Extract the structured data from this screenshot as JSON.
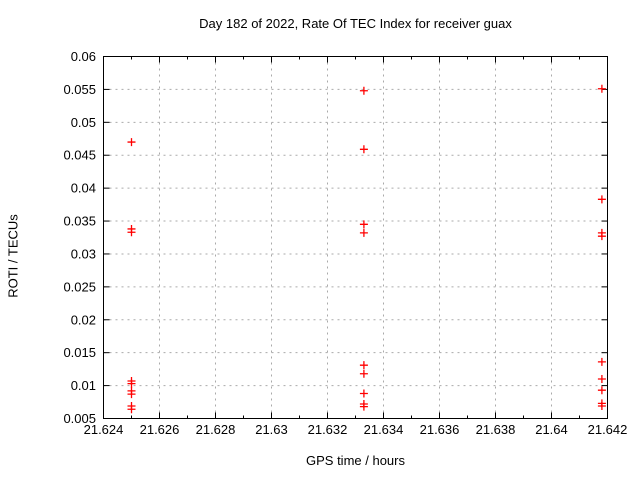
{
  "chart_data": {
    "type": "scatter",
    "title": "Day 182 of 2022, Rate Of TEC Index for receiver guax",
    "xlabel": "GPS time / hours",
    "ylabel": "ROTI / TECUs",
    "xlim": [
      21.624,
      21.642
    ],
    "ylim": [
      0.005,
      0.06
    ],
    "grid": true,
    "grid_color": "#aaaaaa",
    "axis_color": "#000000",
    "background_color": "#ffffff",
    "legend": null,
    "x_ticks": {
      "values": [
        21.624,
        21.626,
        21.628,
        21.63,
        21.632,
        21.634,
        21.636,
        21.638,
        21.64,
        21.642
      ],
      "labels": [
        "21.624",
        "21.626",
        "21.628",
        "21.63",
        "21.632",
        "21.634",
        "21.636",
        "21.638",
        "21.64",
        "21.642"
      ],
      "minor_step": 0.001
    },
    "y_ticks": {
      "values": [
        0.005,
        0.01,
        0.015,
        0.02,
        0.025,
        0.03,
        0.035,
        0.04,
        0.045,
        0.05,
        0.055,
        0.06
      ],
      "labels": [
        "0.005",
        "0.01",
        "0.015",
        "0.02",
        "0.025",
        "0.03",
        "0.035",
        "0.04",
        "0.045",
        "0.05",
        "0.055",
        "0.06"
      ]
    },
    "series": [
      {
        "name": "ROTI",
        "marker": "plus",
        "color": "#ff0000",
        "points": [
          [
            21.625,
            0.047
          ],
          [
            21.625,
            0.0338
          ],
          [
            21.625,
            0.0333
          ],
          [
            21.625,
            0.0107
          ],
          [
            21.625,
            0.0103
          ],
          [
            21.625,
            0.0092
          ],
          [
            21.625,
            0.0087
          ],
          [
            21.625,
            0.0069
          ],
          [
            21.625,
            0.0064
          ],
          [
            21.6333,
            0.0548
          ],
          [
            21.6333,
            0.0459
          ],
          [
            21.6333,
            0.0345
          ],
          [
            21.6333,
            0.0332
          ],
          [
            21.6333,
            0.0131
          ],
          [
            21.6333,
            0.0118
          ],
          [
            21.6333,
            0.0088
          ],
          [
            21.6333,
            0.0072
          ],
          [
            21.6333,
            0.0068
          ],
          [
            21.6418,
            0.0551
          ],
          [
            21.6418,
            0.0383
          ],
          [
            21.6418,
            0.0332
          ],
          [
            21.6418,
            0.0327
          ],
          [
            21.6418,
            0.0136
          ],
          [
            21.6418,
            0.011
          ],
          [
            21.6418,
            0.0093
          ],
          [
            21.6418,
            0.0073
          ],
          [
            21.6418,
            0.0069
          ]
        ]
      }
    ]
  }
}
